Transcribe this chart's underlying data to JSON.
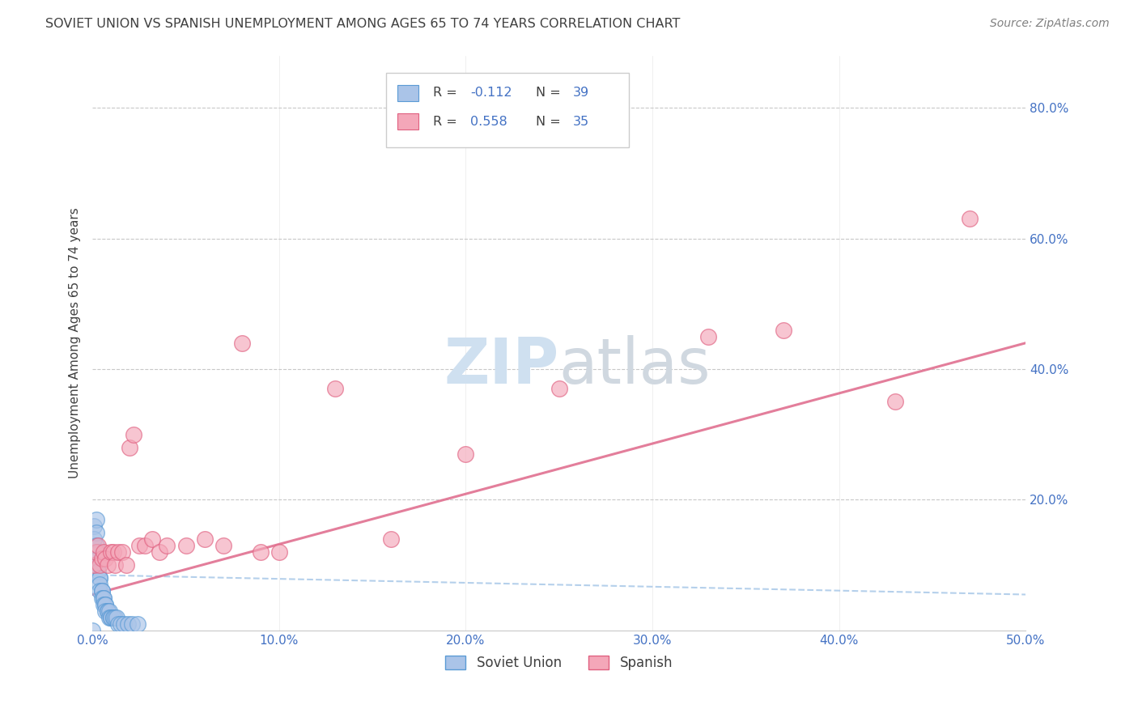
{
  "title": "SOVIET UNION VS SPANISH UNEMPLOYMENT AMONG AGES 65 TO 74 YEARS CORRELATION CHART",
  "source": "Source: ZipAtlas.com",
  "ylabel": "Unemployment Among Ages 65 to 74 years",
  "xlim": [
    0.0,
    0.5
  ],
  "ylim": [
    0.0,
    0.88
  ],
  "xtick_labels": [
    "0.0%",
    "",
    "",
    "",
    "",
    "10.0%",
    "",
    "",
    "",
    "",
    "20.0%",
    "",
    "",
    "",
    "",
    "30.0%",
    "",
    "",
    "",
    "",
    "40.0%",
    "",
    "",
    "",
    "",
    "50.0%"
  ],
  "xtick_vals": [
    0.0,
    0.02,
    0.04,
    0.06,
    0.08,
    0.1,
    0.12,
    0.14,
    0.16,
    0.18,
    0.2,
    0.22,
    0.24,
    0.26,
    0.28,
    0.3,
    0.32,
    0.34,
    0.36,
    0.38,
    0.4,
    0.42,
    0.44,
    0.46,
    0.48,
    0.5
  ],
  "ytick_labels": [
    "20.0%",
    "40.0%",
    "60.0%",
    "80.0%"
  ],
  "ytick_vals": [
    0.2,
    0.4,
    0.6,
    0.8
  ],
  "legend_soviet": "Soviet Union",
  "legend_spanish": "Spanish",
  "soviet_R_label": "R = -0.112",
  "soviet_N_label": "N = 39",
  "spanish_R_label": "R = 0.558",
  "spanish_N_label": "N = 35",
  "soviet_color": "#aac4e8",
  "soviet_edge_color": "#5b9bd5",
  "spanish_color": "#f4a7b9",
  "spanish_edge_color": "#e06080",
  "soviet_line_color": "#a8c8e8",
  "spanish_line_color": "#e07090",
  "blue_text_color": "#4472c4",
  "title_color": "#404040",
  "axis_label_color": "#404040",
  "tick_color": "#4472c4",
  "source_color": "#808080",
  "background_color": "#ffffff",
  "grid_color": "#c8c8c8",
  "soviet_x": [
    0.0,
    0.001,
    0.001,
    0.002,
    0.002,
    0.002,
    0.003,
    0.003,
    0.003,
    0.003,
    0.004,
    0.004,
    0.004,
    0.004,
    0.005,
    0.005,
    0.005,
    0.006,
    0.006,
    0.006,
    0.007,
    0.007,
    0.007,
    0.008,
    0.008,
    0.009,
    0.009,
    0.01,
    0.01,
    0.011,
    0.011,
    0.012,
    0.013,
    0.014,
    0.015,
    0.017,
    0.019,
    0.021,
    0.024
  ],
  "soviet_y": [
    0.0,
    0.16,
    0.14,
    0.17,
    0.15,
    0.13,
    0.12,
    0.11,
    0.1,
    0.09,
    0.08,
    0.08,
    0.07,
    0.06,
    0.06,
    0.06,
    0.05,
    0.05,
    0.05,
    0.04,
    0.04,
    0.04,
    0.03,
    0.03,
    0.03,
    0.03,
    0.02,
    0.02,
    0.02,
    0.02,
    0.02,
    0.02,
    0.02,
    0.01,
    0.01,
    0.01,
    0.01,
    0.01,
    0.01
  ],
  "spanish_x": [
    0.001,
    0.002,
    0.003,
    0.004,
    0.005,
    0.006,
    0.007,
    0.008,
    0.01,
    0.011,
    0.012,
    0.014,
    0.016,
    0.018,
    0.02,
    0.022,
    0.025,
    0.028,
    0.032,
    0.036,
    0.04,
    0.05,
    0.06,
    0.07,
    0.08,
    0.09,
    0.1,
    0.13,
    0.16,
    0.2,
    0.25,
    0.33,
    0.37,
    0.43,
    0.47
  ],
  "spanish_y": [
    0.1,
    0.12,
    0.13,
    0.1,
    0.11,
    0.12,
    0.11,
    0.1,
    0.12,
    0.12,
    0.1,
    0.12,
    0.12,
    0.1,
    0.28,
    0.3,
    0.13,
    0.13,
    0.14,
    0.12,
    0.13,
    0.13,
    0.14,
    0.13,
    0.44,
    0.12,
    0.12,
    0.37,
    0.14,
    0.27,
    0.37,
    0.45,
    0.46,
    0.35,
    0.63
  ],
  "spanish_line_x": [
    0.0,
    0.5
  ],
  "spanish_line_y": [
    0.055,
    0.44
  ],
  "soviet_line_x": [
    0.0,
    0.5
  ],
  "soviet_line_y": [
    0.085,
    0.055
  ]
}
